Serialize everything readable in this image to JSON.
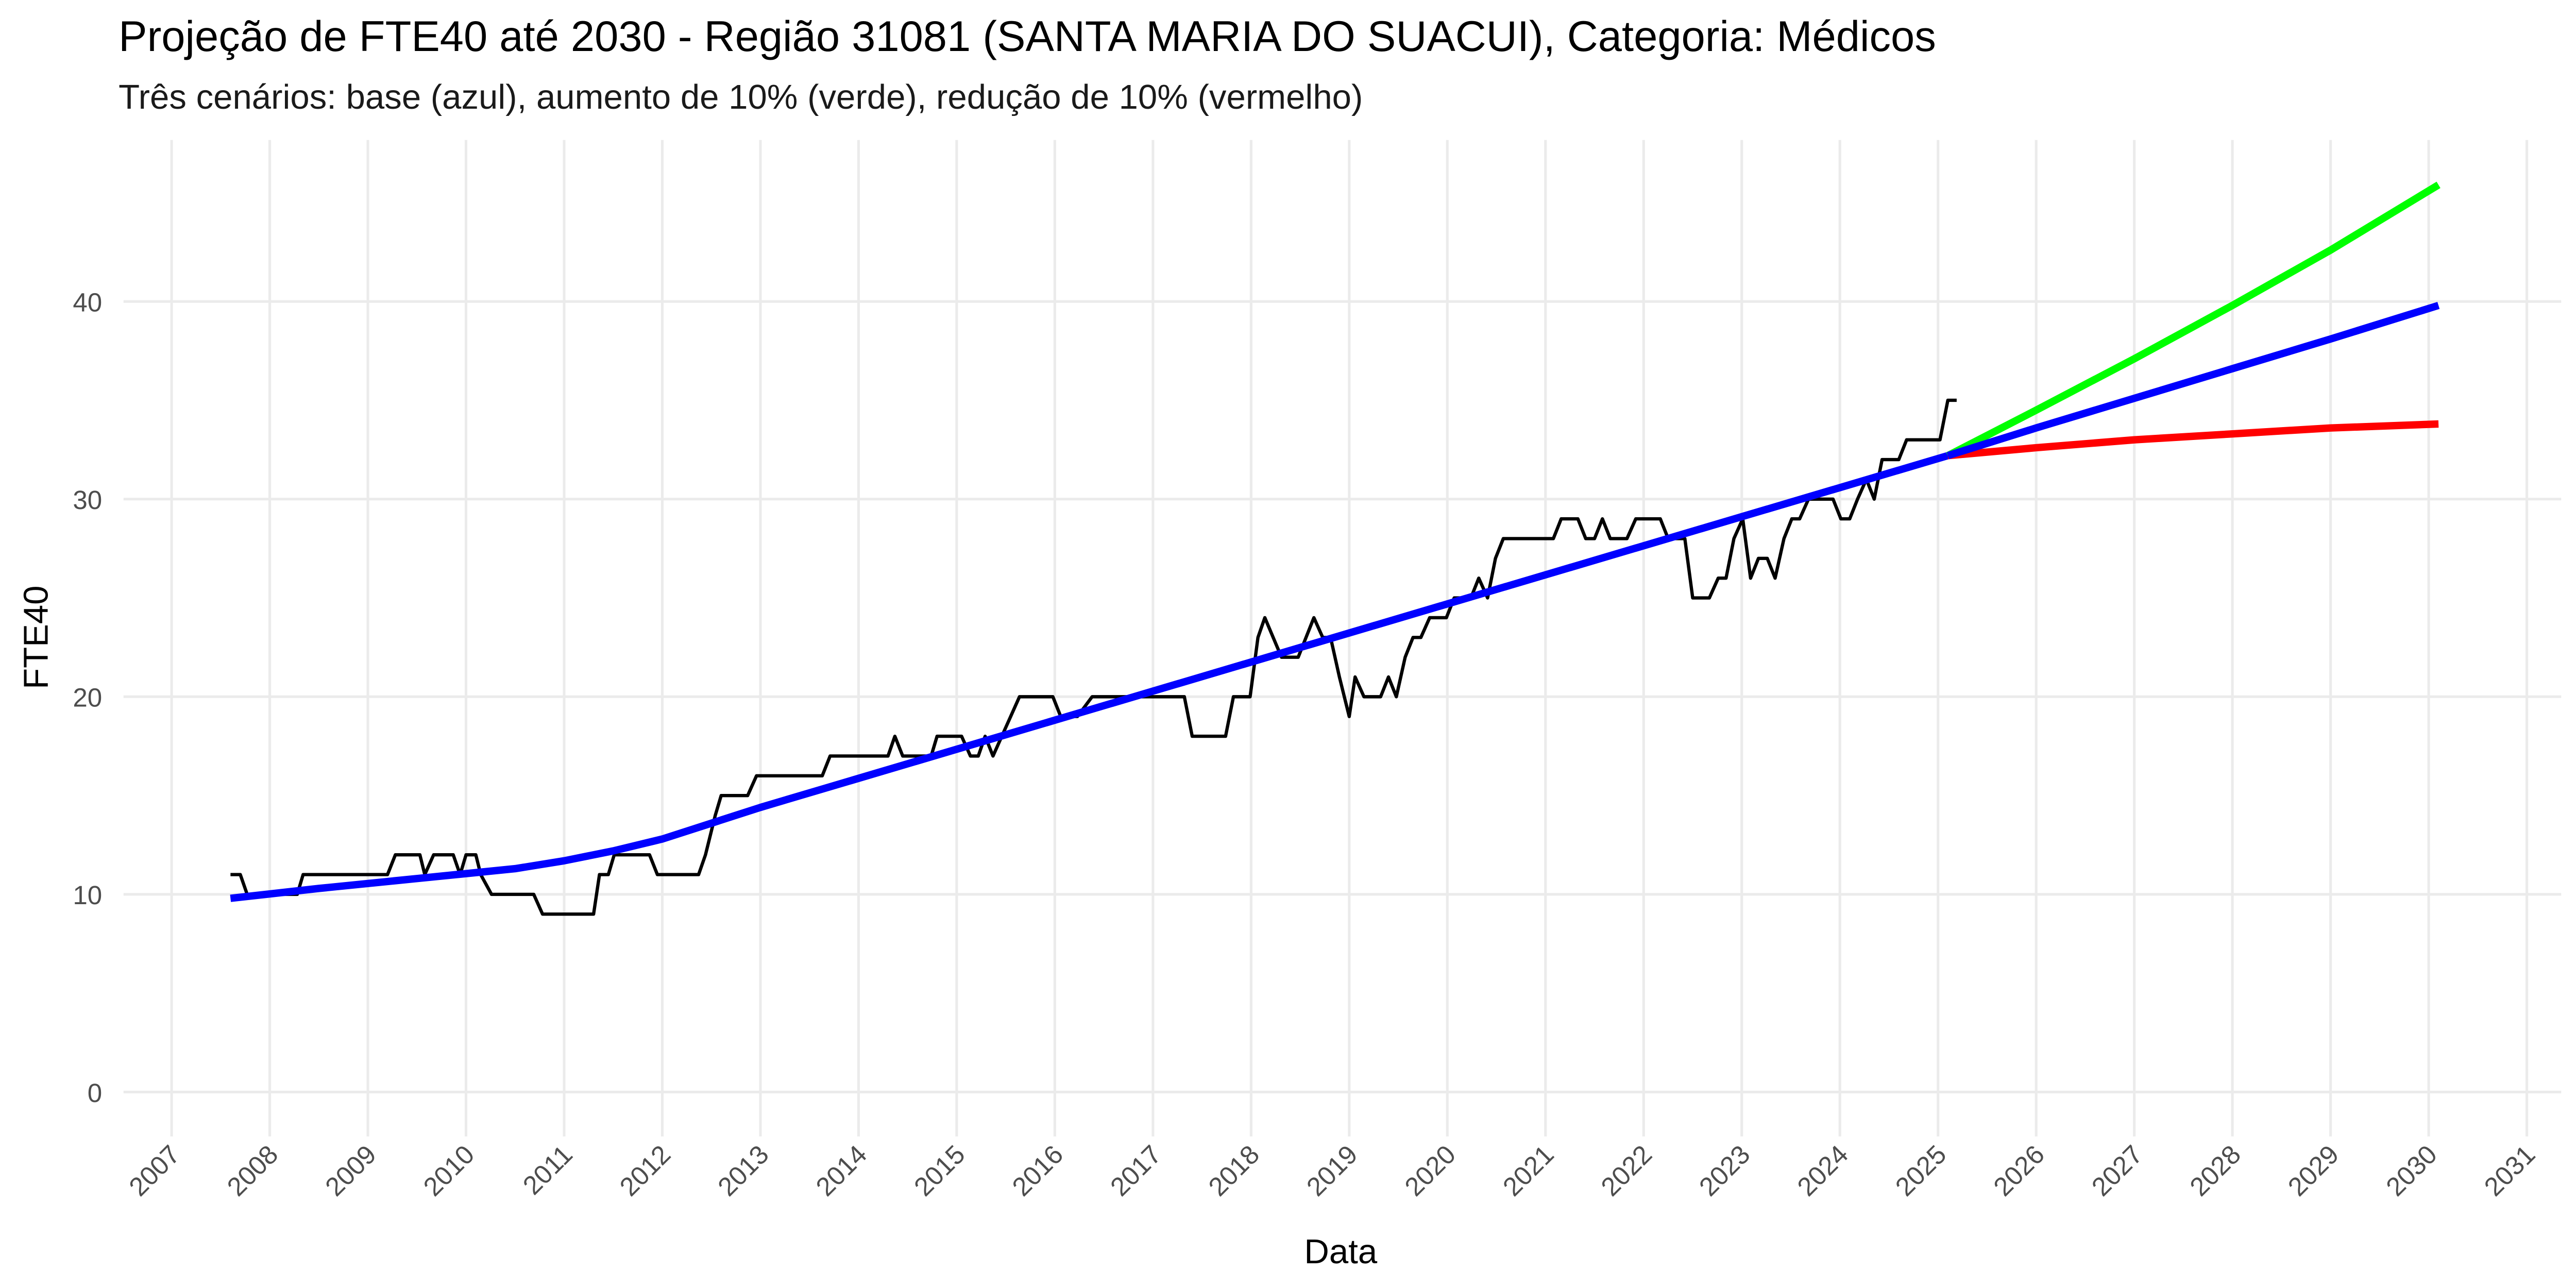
{
  "chart_data": {
    "type": "line",
    "title": "Projeção de FTE40 até 2030 - Região 31081 (SANTA MARIA DO SUACUI), Categoria: Médicos",
    "subtitle": "Três cenários: base (azul), aumento de 10% (verde), redução de 10% (vermelho)",
    "x_label": "Data",
    "y_label": "FTE40",
    "xlim": [
      2006.51,
      2031.35
    ],
    "ylim": [
      -2.25,
      48.17
    ],
    "xticks": [
      2007,
      2008,
      2009,
      2010,
      2011,
      2012,
      2013,
      2014,
      2015,
      2016,
      2017,
      2018,
      2019,
      2020,
      2021,
      2022,
      2023,
      2024,
      2025,
      2026,
      2027,
      2028,
      2029,
      2030,
      2031
    ],
    "yticks": [
      0,
      10,
      20,
      30,
      40
    ],
    "grid": true,
    "series": [
      {
        "color": "#000000",
        "width": 2,
        "x": [
          2007.6,
          2007.7,
          2007.77,
          2008.28,
          2008.34,
          2009.2,
          2009.28,
          2009.53,
          2009.58,
          2009.67,
          2009.87,
          2009.94,
          2010.0,
          2010.1,
          2010.15,
          2010.26,
          2010.69,
          2010.78,
          2011.3,
          2011.36,
          2011.45,
          2011.51,
          2011.87,
          2011.95,
          2012.37,
          2012.44,
          2012.54,
          2012.6,
          2012.87,
          2012.96,
          2013.63,
          2013.71,
          2014.3,
          2014.37,
          2014.45,
          2014.74,
          2014.8,
          2015.05,
          2015.14,
          2015.22,
          2015.29,
          2015.37,
          2015.46,
          2015.64,
          2015.98,
          2016.06,
          2016.23,
          2016.38,
          2017.32,
          2017.4,
          2017.74,
          2017.82,
          2017.99,
          2018.07,
          2018.14,
          2018.31,
          2018.48,
          2018.56,
          2018.64,
          2018.73,
          2018.81,
          2018.9,
          2019.0,
          2019.06,
          2019.15,
          2019.32,
          2019.4,
          2019.48,
          2019.57,
          2019.65,
          2019.73,
          2019.82,
          2019.99,
          2020.07,
          2020.24,
          2020.32,
          2020.41,
          2020.49,
          2020.57,
          2021.08,
          2021.16,
          2021.33,
          2021.41,
          2021.5,
          2021.58,
          2021.66,
          2021.83,
          2021.92,
          2022.17,
          2022.25,
          2022.42,
          2022.5,
          2022.67,
          2022.76,
          2022.84,
          2022.92,
          2023.01,
          2023.09,
          2023.17,
          2023.26,
          2023.34,
          2023.43,
          2023.51,
          2023.59,
          2023.68,
          2023.93,
          2024.01,
          2024.1,
          2024.18,
          2024.27,
          2024.35,
          2024.43,
          2024.6,
          2024.68,
          2024.94,
          2025.02,
          2025.1,
          2025.19
        ],
        "values": [
          11,
          11,
          10,
          10,
          11,
          11,
          12,
          12,
          11,
          12,
          12,
          11,
          12,
          12,
          11,
          10,
          10,
          9,
          9,
          11,
          11,
          12,
          12,
          11,
          11,
          12,
          14,
          15,
          15,
          16,
          16,
          17,
          17,
          18,
          17,
          17,
          18,
          18,
          17,
          17,
          18,
          17,
          18,
          20,
          20,
          19,
          19,
          20,
          20,
          18,
          18,
          20,
          20,
          23,
          24,
          22,
          22,
          23,
          24,
          23,
          23,
          21,
          19,
          21,
          20,
          20,
          21,
          20,
          22,
          23,
          23,
          24,
          24,
          25,
          25,
          26,
          25,
          27,
          28,
          28,
          29,
          29,
          28,
          28,
          29,
          28,
          28,
          29,
          29,
          28,
          28,
          25,
          25,
          26,
          26,
          28,
          29,
          26,
          27,
          27,
          26,
          28,
          29,
          29,
          30,
          30,
          29,
          29,
          30,
          31,
          30,
          32,
          32,
          33,
          33,
          33,
          35,
          35
        ]
      },
      {
        "color": "#0000ff",
        "width": 4.5,
        "x": [
          2007.6,
          2008.5,
          2009.5,
          2010.5,
          2011.0,
          2011.5,
          2012.0,
          2012.5,
          2013.0,
          2025.1
        ],
        "values": [
          9.8,
          10.3,
          10.8,
          11.3,
          11.7,
          12.2,
          12.8,
          13.6,
          14.4,
          32.2
        ]
      },
      {
        "color": "#00ff00",
        "width": 4.5,
        "x": [
          2025.1,
          2026,
          2027,
          2028,
          2029,
          2030.1
        ],
        "values": [
          32.2,
          34.5,
          37.1,
          39.8,
          42.6,
          45.9
        ]
      },
      {
        "color": "#ff0000",
        "width": 4.5,
        "x": [
          2025.1,
          2026,
          2027,
          2028,
          2029,
          2030.1
        ],
        "values": [
          32.2,
          32.6,
          33.0,
          33.3,
          33.6,
          33.8
        ]
      },
      {
        "color": "#0000ff",
        "width": 4.5,
        "x": [
          2025.1,
          2026,
          2027,
          2028,
          2029,
          2030.1
        ],
        "values": [
          32.2,
          33.6,
          35.1,
          36.6,
          38.1,
          39.8
        ]
      }
    ]
  }
}
